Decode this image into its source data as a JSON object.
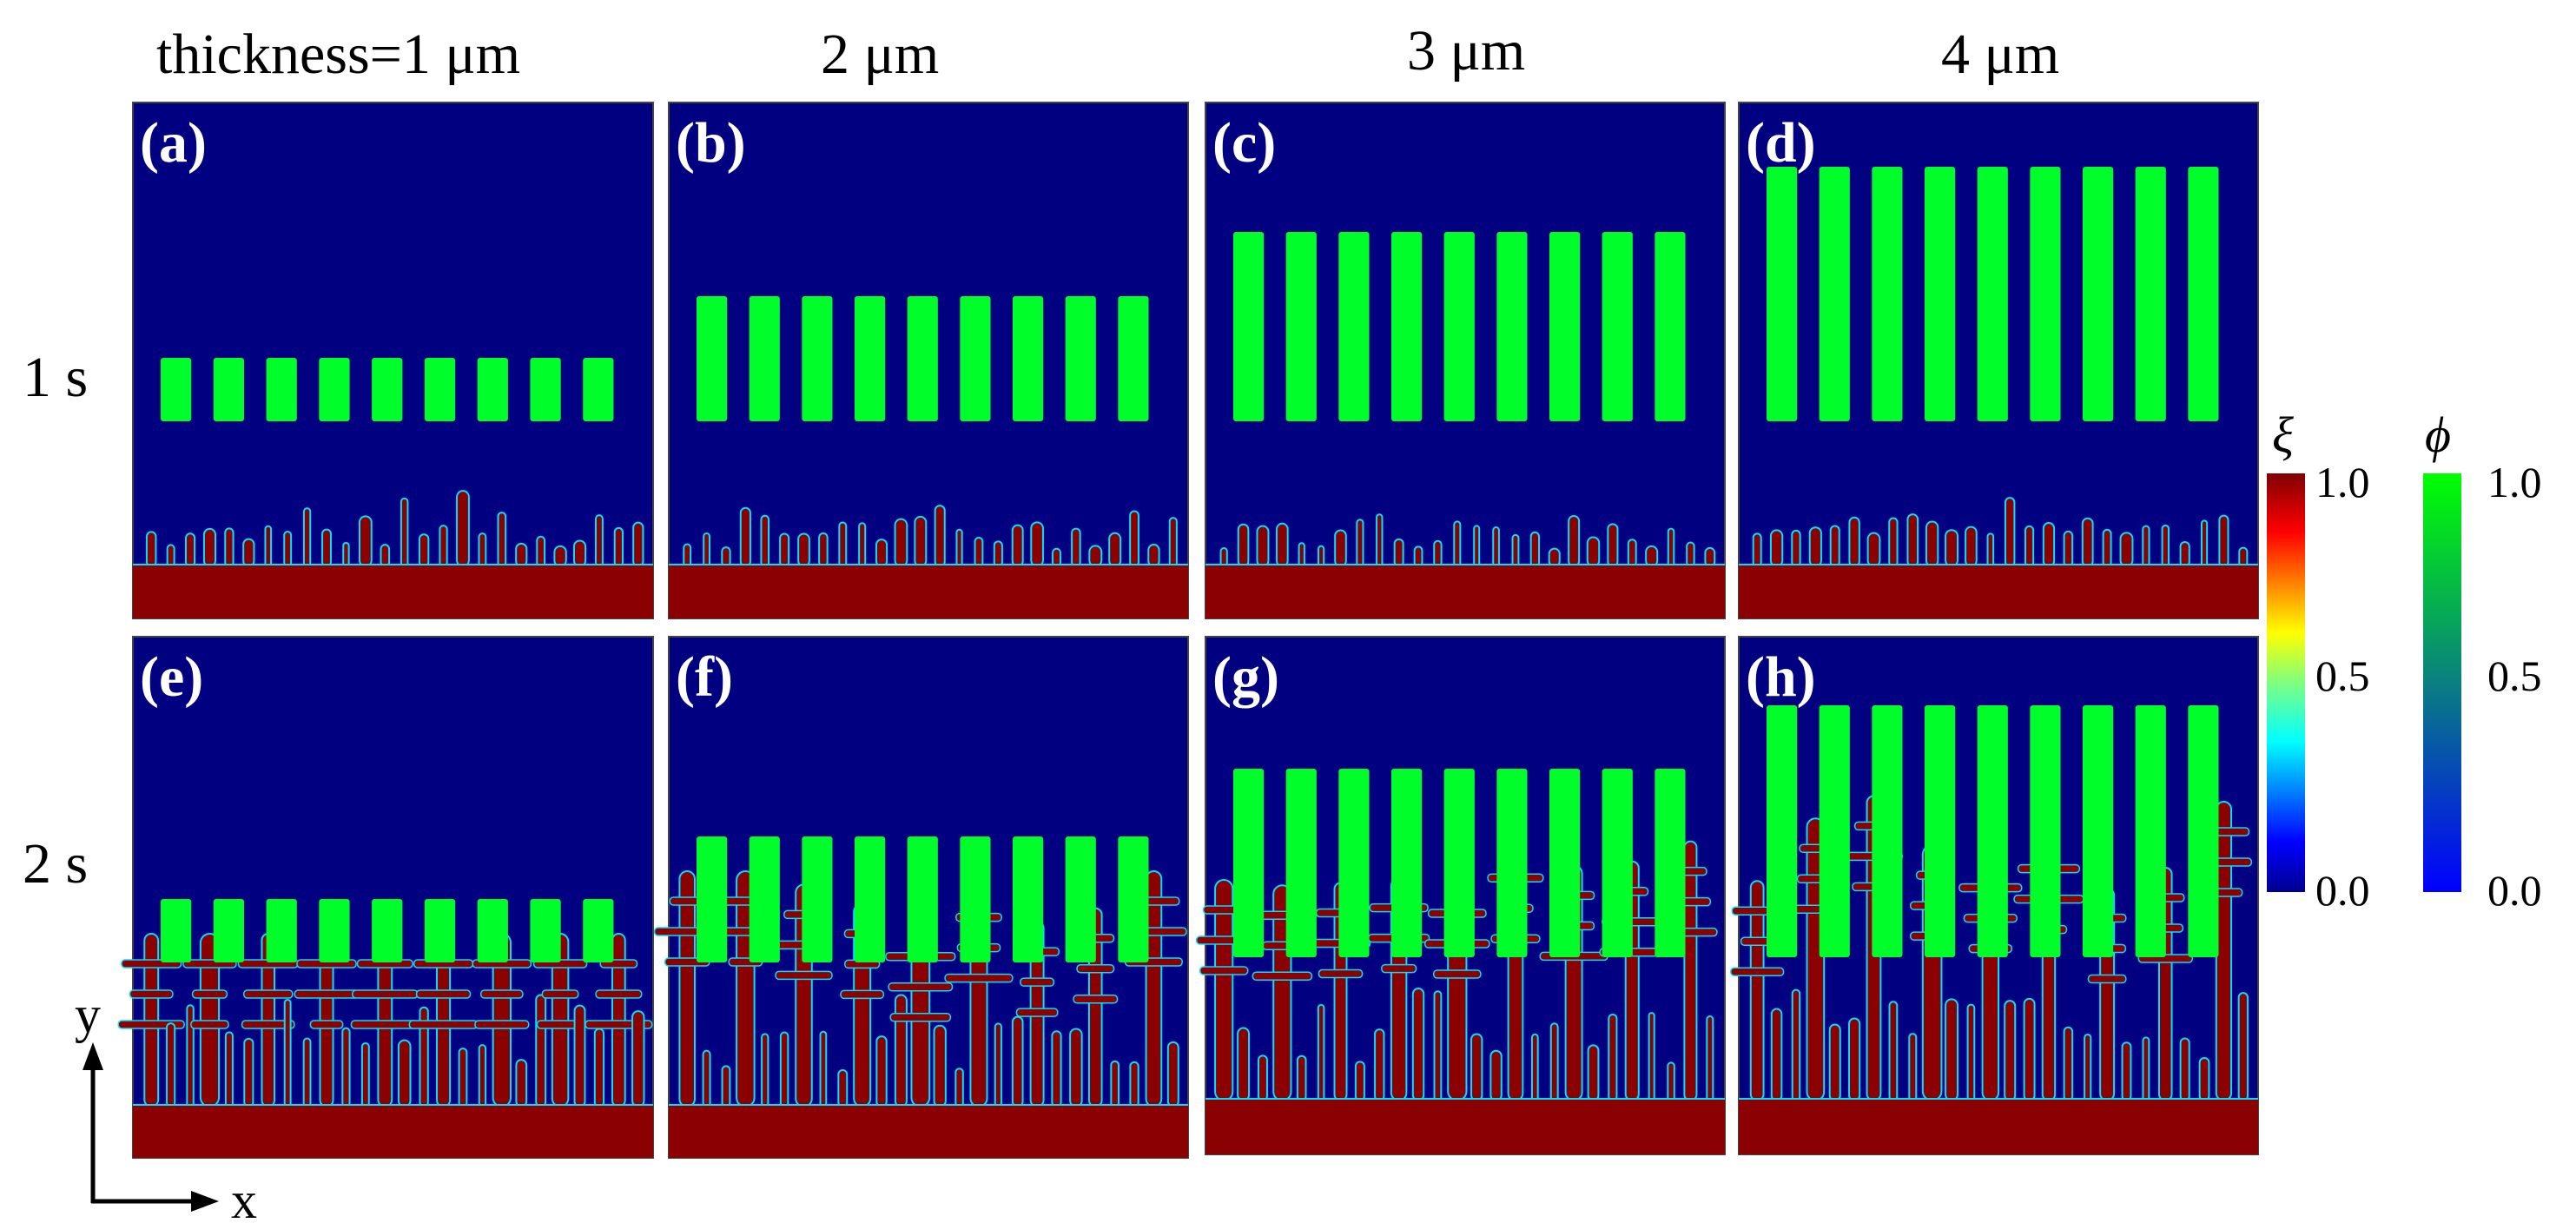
{
  "column_headers": [
    "thickness=1  μm",
    "2 μm",
    "3 μm",
    "4 μm"
  ],
  "row_headers": [
    "1 s",
    "2 s"
  ],
  "panel_labels": [
    "(a)",
    "(b)",
    "(c)",
    "(d)",
    "(e)",
    "(f)",
    "(g)",
    "(h)"
  ],
  "axes": {
    "x": "x",
    "y": "y"
  },
  "colorbars": [
    {
      "symbol": "ξ",
      "max_label": "1.0",
      "mid_label": "0.5",
      "min_label": "0.0",
      "colormap": "jet"
    },
    {
      "symbol": "ϕ",
      "max_label": "1.0",
      "mid_label": "0.5",
      "min_label": "0.0",
      "colormap": "blue-green"
    }
  ],
  "colors": {
    "background_field": "#000080",
    "separator_phase": "#00ff2a",
    "dendrite_phase": "#8b0000",
    "interface": "#00e0ff"
  },
  "separator": {
    "columns": 9,
    "relative_length_by_thickness": [
      1,
      2,
      3,
      4
    ]
  }
}
